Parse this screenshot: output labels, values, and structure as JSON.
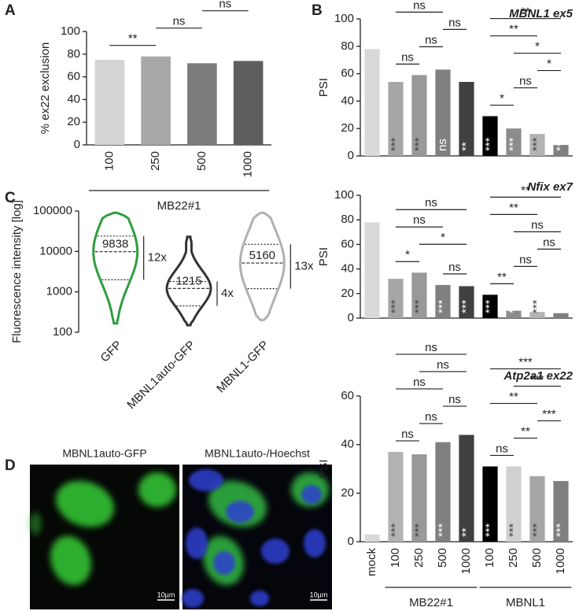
{
  "chart_data": [
    {
      "panel": "A",
      "type": "bar",
      "ylabel": "% ex22 exclusion",
      "categories": [
        "100",
        "250",
        "500",
        "1000"
      ],
      "values": [
        75,
        78,
        72,
        74
      ],
      "colors": [
        "#d4d4d4",
        "#a8a8a8",
        "#7c7c7c",
        "#5e5e5e"
      ],
      "ylim": [
        0,
        100
      ],
      "yticks": [
        0,
        20,
        40,
        60,
        80,
        100
      ],
      "brackets": [
        {
          "from": 0,
          "to": 1,
          "label": "**"
        },
        {
          "from": 1,
          "to": 2,
          "label": "ns"
        },
        {
          "from": 2,
          "to": 3,
          "label": "ns"
        },
        {
          "from": 1,
          "to": 3,
          "label": "ns"
        },
        {
          "from": 0,
          "to": 2,
          "label": "ns"
        },
        {
          "from": 0,
          "to": 3,
          "label": "ns"
        }
      ],
      "groups": [
        {
          "label": "MB22#1",
          "from": 0,
          "to": 3
        }
      ]
    },
    {
      "panel": "B",
      "type": "bar",
      "title": "MBNL1 ex5",
      "ylabel": "PSI",
      "values": [
        78,
        54,
        59,
        63,
        54,
        29,
        20,
        16,
        8
      ],
      "colors": [
        "#d9d9d9",
        "#a6a6a6",
        "#999999",
        "#808080",
        "#404040",
        "#000000",
        "#8c8c8c",
        "#b3b3b3",
        "#808080"
      ],
      "ylim": [
        0,
        100
      ],
      "yticks": [
        0,
        20,
        40,
        60,
        80,
        100
      ],
      "bar_labels": [
        {
          "at": 1,
          "label": "***"
        },
        {
          "at": 2,
          "label": "***"
        },
        {
          "at": 3,
          "label": "ns"
        },
        {
          "at": 4,
          "label": "**"
        },
        {
          "at": 5,
          "label": "***"
        },
        {
          "at": 6,
          "label": "***"
        },
        {
          "at": 7,
          "label": "***"
        },
        {
          "at": 8,
          "label": "***"
        }
      ],
      "brackets": [
        {
          "from": 1,
          "to": 2,
          "label": "ns"
        },
        {
          "from": 2,
          "to": 3,
          "label": "ns"
        },
        {
          "from": 3,
          "to": 4,
          "label": "ns"
        },
        {
          "from": 1,
          "to": 3,
          "label": "ns"
        },
        {
          "from": 2,
          "to": 4,
          "label": "ns"
        },
        {
          "from": 1,
          "to": 4,
          "label": "ns"
        },
        {
          "from": 5,
          "to": 6,
          "label": "*"
        },
        {
          "from": 6,
          "to": 7,
          "label": "ns"
        },
        {
          "from": 7,
          "to": 8,
          "label": "*"
        },
        {
          "from": 6,
          "to": 8,
          "label": "*"
        },
        {
          "from": 5,
          "to": 7,
          "label": "**"
        },
        {
          "from": 5,
          "to": 8,
          "label": "**"
        }
      ]
    },
    {
      "type": "bar",
      "title": "Nfix ex7",
      "ylabel": "PSI",
      "values": [
        78,
        32,
        37,
        27,
        26,
        19,
        6,
        5,
        4
      ],
      "colors": [
        "#d9d9d9",
        "#a6a6a6",
        "#999999",
        "#808080",
        "#404040",
        "#000000",
        "#8c8c8c",
        "#b3b3b3",
        "#808080"
      ],
      "ylim": [
        0,
        100
      ],
      "yticks": [
        0,
        20,
        40,
        60,
        80,
        100
      ],
      "bar_labels": [
        {
          "at": 1,
          "label": "***"
        },
        {
          "at": 2,
          "label": "***"
        },
        {
          "at": 3,
          "label": "***"
        },
        {
          "at": 4,
          "label": "***"
        },
        {
          "at": 5,
          "label": "***"
        },
        {
          "at": 6,
          "label": "***"
        },
        {
          "at": 7,
          "label": "***"
        },
        {
          "at": 8,
          "label": "***"
        }
      ],
      "brackets": [
        {
          "from": 1,
          "to": 2,
          "label": "*"
        },
        {
          "from": 3,
          "to": 4,
          "label": "ns"
        },
        {
          "from": 2,
          "to": 4,
          "label": "*"
        },
        {
          "from": 1,
          "to": 3,
          "label": "ns"
        },
        {
          "from": 1,
          "to": 4,
          "label": "ns"
        },
        {
          "from": 5,
          "to": 6,
          "label": "**"
        },
        {
          "from": 6,
          "to": 7,
          "label": "ns"
        },
        {
          "from": 7,
          "to": 8,
          "label": "ns"
        },
        {
          "from": 6,
          "to": 8,
          "label": "ns"
        },
        {
          "from": 5,
          "to": 7,
          "label": "**"
        },
        {
          "from": 5,
          "to": 8,
          "label": "**"
        }
      ]
    },
    {
      "type": "bar",
      "title": "Atp2a1 ex22",
      "ylabel": "PSI",
      "categories": [
        "mock",
        "100",
        "250",
        "500",
        "1000",
        "100",
        "250",
        "500",
        "1000"
      ],
      "values": [
        3,
        37,
        36,
        41,
        44,
        31,
        31,
        27,
        25
      ],
      "colors": [
        "#d9d9d9",
        "#b3b3b3",
        "#999999",
        "#7f7f7f",
        "#404040",
        "#000000",
        "#d0d0d0",
        "#a6a6a6",
        "#7f7f7f"
      ],
      "ylim": [
        0,
        60
      ],
      "yticks": [
        0,
        20,
        40,
        60
      ],
      "bar_labels": [
        {
          "at": 1,
          "label": "***"
        },
        {
          "at": 2,
          "label": "***"
        },
        {
          "at": 3,
          "label": "***"
        },
        {
          "at": 4,
          "label": "**"
        },
        {
          "at": 5,
          "label": "***"
        },
        {
          "at": 6,
          "label": "***"
        },
        {
          "at": 7,
          "label": "***"
        },
        {
          "at": 8,
          "label": "***"
        }
      ],
      "brackets": [
        {
          "from": 1,
          "to": 2,
          "label": "ns"
        },
        {
          "from": 2,
          "to": 3,
          "label": "ns"
        },
        {
          "from": 3,
          "to": 4,
          "label": "ns"
        },
        {
          "from": 1,
          "to": 3,
          "label": "ns"
        },
        {
          "from": 2,
          "to": 4,
          "label": "ns"
        },
        {
          "from": 1,
          "to": 4,
          "label": "ns"
        },
        {
          "from": 5,
          "to": 6,
          "label": "ns"
        },
        {
          "from": 6,
          "to": 7,
          "label": "**"
        },
        {
          "from": 7,
          "to": 8,
          "label": "***"
        },
        {
          "from": 5,
          "to": 7,
          "label": "**"
        },
        {
          "from": 6,
          "to": 8,
          "label": "***"
        },
        {
          "from": 5,
          "to": 8,
          "label": "***"
        }
      ],
      "groups": [
        {
          "label": "MB22#1",
          "from": 1,
          "to": 4
        },
        {
          "label": "MBNL1",
          "from": 5,
          "to": 8
        }
      ]
    },
    {
      "panel": "C",
      "type": "violin",
      "ylabel": "Fluorescence intensity [log]",
      "log_scale": true,
      "categories": [
        "GFP",
        "MBNL1auto-GFP",
        "MBNL1-GFP"
      ],
      "colors": [
        "#2e9e3e",
        "#333333",
        "#b0b0b0"
      ],
      "medians": [
        9838,
        1215,
        5160
      ],
      "q1": [
        2000,
        450,
        1200
      ],
      "q3": [
        24000,
        1800,
        15000
      ],
      "mins": [
        165,
        150,
        200
      ],
      "maxs": [
        90000,
        23000,
        90000
      ],
      "fold_labels": [
        "12x",
        "4x",
        "13x"
      ],
      "ylim": [
        100,
        100000
      ],
      "yticks": [
        100,
        1000,
        10000,
        100000
      ]
    }
  ],
  "panel_d": {
    "panel": "D",
    "images": [
      {
        "title": "MBNL1auto-GFP",
        "scale_bar": "10µm"
      },
      {
        "title": "MBNL1auto-/Hoechst",
        "scale_bar": "10µm"
      }
    ]
  }
}
